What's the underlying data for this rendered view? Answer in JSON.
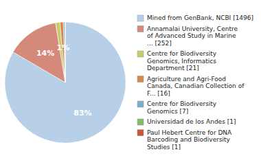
{
  "chart_data": {
    "type": "pie",
    "categories": [
      "Mined from GenBank, NCBI [1496]",
      "Annamalai University, Centre\nof Advanced Study in Marine\n... [252]",
      "Centre for Biodiversity\nGenomics, Informatics\nDepartment [21]",
      "Agriculture and Agri-Food\nCanada, Canadian Collection of\nF... [16]",
      "Centre for Biodiversity\nGenomics [7]",
      "Universidad de los Andes [1]",
      "Paul Hebert Centre for DNA\nBarcoding and Biodiversity\nStudies [1]"
    ],
    "values": [
      83.44,
      14.05,
      1.17,
      0.89,
      0.39,
      0.06,
      0.06
    ],
    "value_labels": [
      "83%",
      "14%",
      null,
      "1%",
      null,
      null,
      null
    ],
    "data_labels": true,
    "colors": [
      "#b8cfe8",
      "#d4897a",
      "#c8cc6a",
      "#d4884a",
      "#7aaecc",
      "#88bb66",
      "#cc5533"
    ],
    "legend": "right"
  }
}
